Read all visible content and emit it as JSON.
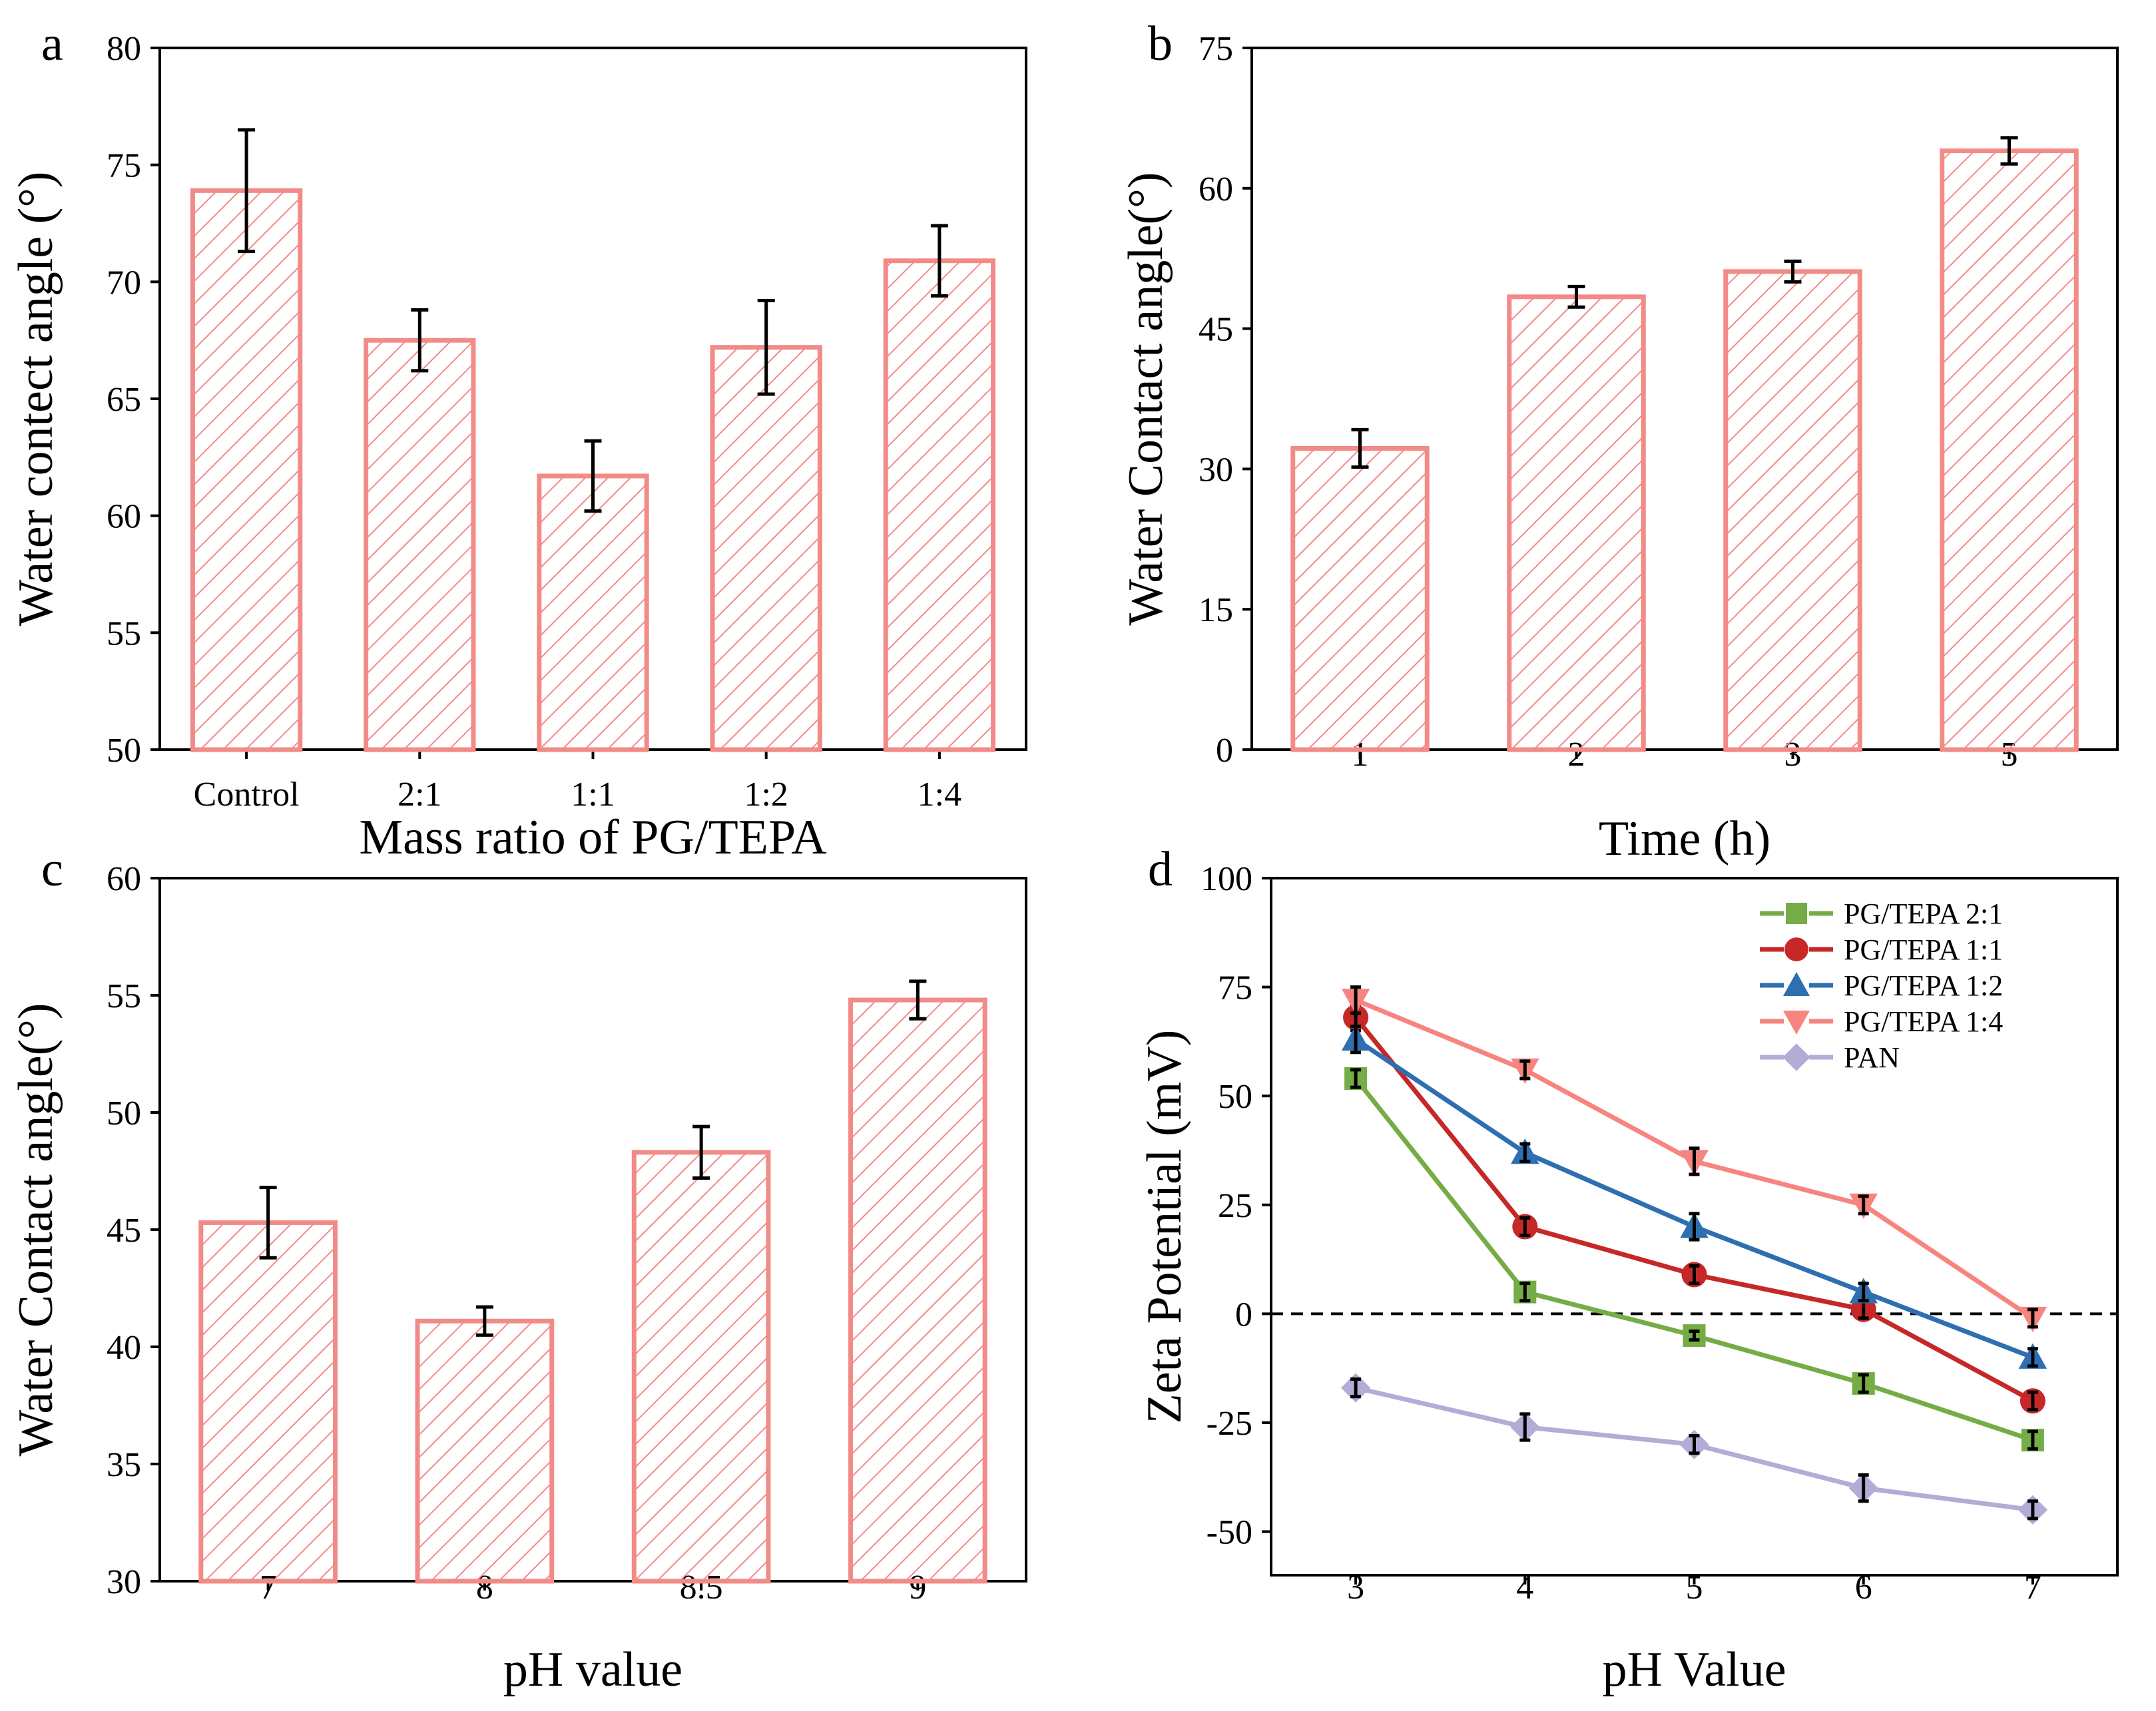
{
  "colors": {
    "bar": "#f28b87",
    "series_21": "#76ac46",
    "series_11": "#c62828",
    "series_12": "#2f6fb0",
    "series_14": "#f7847f",
    "series_pan": "#b3acd6",
    "errorbar": "#000000",
    "zero_line": "#000000"
  },
  "chart_data": [
    {
      "panel": "a",
      "type": "bar",
      "categories": [
        "Control",
        "2:1",
        "1:1",
        "1:2",
        "1:4"
      ],
      "values": [
        73.9,
        67.5,
        61.7,
        67.2,
        70.9
      ],
      "errors": [
        2.6,
        1.3,
        1.5,
        2.0,
        1.5
      ],
      "xlabel": "Mass ratio of PG/TEPA",
      "ylabel": "Water contect angle (°)",
      "ylim": [
        50,
        80
      ],
      "yticks": [
        50,
        55,
        60,
        65,
        70,
        75,
        80
      ],
      "fill": "hatched"
    },
    {
      "panel": "b",
      "type": "bar",
      "categories": [
        "1",
        "2",
        "3",
        "5"
      ],
      "values": [
        32.2,
        48.4,
        51.1,
        64.0
      ],
      "errors": [
        2.0,
        1.1,
        1.1,
        1.4
      ],
      "xlabel": "Time (h)",
      "ylabel": "Water Contact angle(°)",
      "ylim": [
        0,
        75
      ],
      "yticks": [
        0,
        15,
        30,
        45,
        60,
        75
      ],
      "fill": "hatched"
    },
    {
      "panel": "c",
      "type": "bar",
      "categories": [
        "7",
        "8",
        "8.5",
        "9"
      ],
      "values": [
        45.3,
        41.1,
        48.3,
        54.8
      ],
      "errors": [
        1.5,
        0.6,
        1.1,
        0.8
      ],
      "xlabel": "pH value",
      "ylabel": "Water Contact angle(°)",
      "ylim": [
        30,
        60
      ],
      "yticks": [
        30,
        35,
        40,
        45,
        50,
        55,
        60
      ],
      "fill": "hatched"
    },
    {
      "panel": "d",
      "type": "line",
      "x": [
        3,
        4,
        5,
        6,
        7
      ],
      "xlim": [
        2.5,
        7.5
      ],
      "xticks": [
        3,
        4,
        5,
        6,
        7
      ],
      "ylim": [
        -60,
        100
      ],
      "yticks": [
        -50,
        -25,
        0,
        25,
        50,
        75,
        100
      ],
      "xlabel": "pH Value",
      "ylabel": "Zeta Potential (mV)",
      "zero_line": "dashed",
      "legend_position": "top-right",
      "series": [
        {
          "name": "PG/TEPA 2:1",
          "marker": "square",
          "values": [
            54,
            5,
            -5,
            -16,
            -29
          ],
          "errors": [
            2,
            2,
            1,
            2,
            2
          ]
        },
        {
          "name": "PG/TEPA 1:1",
          "marker": "circle",
          "values": [
            68,
            20,
            9,
            1,
            -20
          ],
          "errors": [
            3,
            2,
            2,
            2,
            2
          ]
        },
        {
          "name": "PG/TEPA 1:2",
          "marker": "triangle-up",
          "values": [
            63,
            37,
            20,
            5,
            -10
          ],
          "errors": [
            3,
            2,
            3,
            2,
            2
          ]
        },
        {
          "name": "PG/TEPA 1:4",
          "marker": "triangle-down",
          "values": [
            72,
            56,
            35,
            25,
            -1
          ],
          "errors": [
            3,
            2,
            3,
            2,
            2
          ]
        },
        {
          "name": "PAN",
          "marker": "diamond",
          "values": [
            -17,
            -26,
            -30,
            -40,
            -45
          ],
          "errors": [
            2,
            3,
            2,
            3,
            2
          ]
        }
      ]
    }
  ]
}
